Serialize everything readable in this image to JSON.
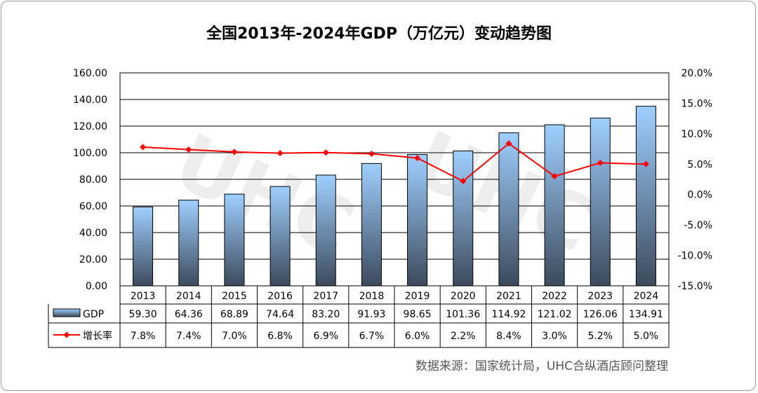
{
  "chart_data": {
    "type": "bar",
    "title": "全国2013年-2024年GDP（万亿元）变动趋势图",
    "categories": [
      "2013",
      "2014",
      "2015",
      "2016",
      "2017",
      "2018",
      "2019",
      "2020",
      "2021",
      "2022",
      "2023",
      "2024"
    ],
    "series": [
      {
        "name": "GDP",
        "type": "bar",
        "axis": "left",
        "values": [
          59.3,
          64.36,
          68.89,
          74.64,
          83.2,
          91.93,
          98.65,
          101.36,
          114.92,
          121.02,
          126.06,
          134.91
        ],
        "labels": [
          "59.30",
          "64.36",
          "68.89",
          "74.64",
          "83.20",
          "91.93",
          "98.65",
          "101.36",
          "114.92",
          "121.02",
          "126.06",
          "134.91"
        ]
      },
      {
        "name": "增长率",
        "type": "line",
        "axis": "right",
        "values": [
          7.8,
          7.4,
          7.0,
          6.8,
          6.9,
          6.7,
          6.0,
          2.2,
          8.4,
          3.0,
          5.2,
          5.0
        ],
        "labels": [
          "7.8%",
          "7.4%",
          "7.0%",
          "6.8%",
          "6.9%",
          "6.7%",
          "6.0%",
          "2.2%",
          "8.4%",
          "3.0%",
          "5.2%",
          "5.0%"
        ]
      }
    ],
    "yleft": {
      "ylim": [
        0,
        160
      ],
      "ticks": [
        "0.00",
        "20.00",
        "40.00",
        "60.00",
        "80.00",
        "100.00",
        "120.00",
        "140.00",
        "160.00"
      ]
    },
    "yright": {
      "ylim": [
        -15,
        20
      ],
      "ticks": [
        "-15.0%",
        "-10.0%",
        "-5.0%",
        "0.0%",
        "5.0%",
        "10.0%",
        "15.0%",
        "20.0%"
      ]
    },
    "colors": {
      "bar_top": "#9fd0ff",
      "bar_bottom": "#3d4a5c",
      "line": "#ff0000"
    },
    "source": "数据来源：国家统计局，UHC合纵酒店顾问整理",
    "watermark": "UHC 合纵酒店顾问 UNITED HOTEL CONSULTANTS"
  }
}
